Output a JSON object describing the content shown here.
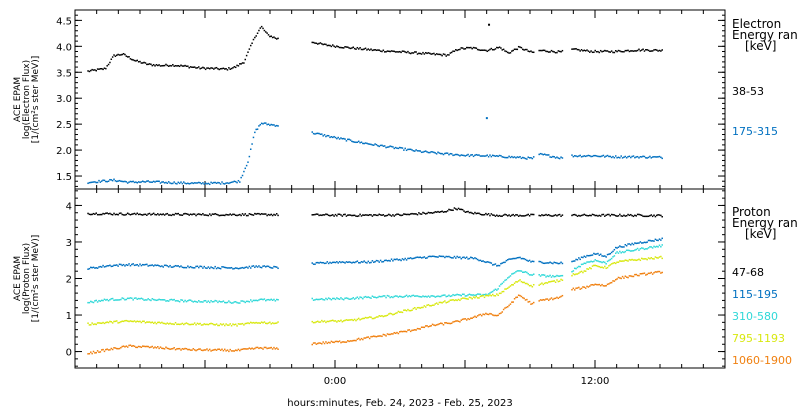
{
  "xlabel": "hours:minutes, Feb. 24, 2023 - Feb. 25, 2023",
  "x_tick_labels": [
    "0:00",
    "12:00"
  ],
  "chart_data": [
    {
      "type": "scatter",
      "panel": "electron",
      "ylabel_lines": [
        "ACE EPAM",
        "log(Electron Flux)",
        "[1/(cm²s ster MeV)]"
      ],
      "legend_title_lines": [
        "Electron",
        "Energy ran",
        "[keV]"
      ],
      "xlim": [
        -12,
        18
      ],
      "ylim": [
        1.25,
        4.7
      ],
      "y_tick_labels": [
        "1.5",
        "2.0",
        "2.5",
        "3.0",
        "3.5",
        "4.0",
        "4.5"
      ],
      "y_ticks": [
        1.5,
        2.0,
        2.5,
        3.0,
        3.5,
        4.0,
        4.5
      ],
      "gaps": [
        [
          -2.6,
          -1.1
        ],
        [
          9.2,
          9.4
        ],
        [
          10.5,
          10.9
        ]
      ],
      "series": [
        {
          "name": "38-53",
          "color": "#000000",
          "points": [
            [
              -11.4,
              3.52
            ],
            [
              -10.6,
              3.57
            ],
            [
              -10.2,
              3.82
            ],
            [
              -9.8,
              3.85
            ],
            [
              -9.2,
              3.72
            ],
            [
              -8.6,
              3.65
            ],
            [
              -8.0,
              3.63
            ],
            [
              -7.5,
              3.64
            ],
            [
              -7.0,
              3.62
            ],
            [
              -6.2,
              3.58
            ],
            [
              -5.5,
              3.57
            ],
            [
              -5.0,
              3.56
            ],
            [
              -4.6,
              3.6
            ],
            [
              -4.2,
              3.7
            ],
            [
              -3.7,
              4.18
            ],
            [
              -3.4,
              4.38
            ],
            [
              -3.1,
              4.22
            ],
            [
              -2.7,
              4.15
            ],
            [
              -1.0,
              4.08
            ],
            [
              -0.5,
              4.03
            ],
            [
              0.5,
              3.98
            ],
            [
              2.0,
              3.92
            ],
            [
              3.5,
              3.88
            ],
            [
              4.5,
              3.85
            ],
            [
              5.2,
              3.83
            ],
            [
              5.7,
              3.95
            ],
            [
              6.3,
              3.97
            ],
            [
              7.0,
              3.92
            ],
            [
              7.6,
              3.98
            ],
            [
              8.0,
              3.87
            ],
            [
              8.5,
              3.98
            ],
            [
              9.1,
              3.88
            ],
            [
              9.5,
              3.92
            ],
            [
              10.4,
              3.89
            ],
            [
              11.0,
              3.94
            ],
            [
              11.9,
              3.9
            ],
            [
              12.9,
              3.9
            ],
            [
              14.0,
              3.93
            ],
            [
              15.1,
              3.92
            ]
          ],
          "outliers": [
            [
              7.1,
              4.42
            ]
          ]
        },
        {
          "name": "175-315",
          "color": "#0070c0",
          "points": [
            [
              -11.4,
              1.38
            ],
            [
              -10.8,
              1.4
            ],
            [
              -10.2,
              1.42
            ],
            [
              -9.5,
              1.38
            ],
            [
              -8.8,
              1.39
            ],
            [
              -8.0,
              1.38
            ],
            [
              -7.3,
              1.37
            ],
            [
              -6.5,
              1.36
            ],
            [
              -5.8,
              1.36
            ],
            [
              -5.0,
              1.37
            ],
            [
              -4.4,
              1.4
            ],
            [
              -4.0,
              1.8
            ],
            [
              -3.7,
              2.35
            ],
            [
              -3.4,
              2.52
            ],
            [
              -3.0,
              2.49
            ],
            [
              -2.7,
              2.48
            ],
            [
              -1.0,
              2.33
            ],
            [
              0.0,
              2.24
            ],
            [
              1.0,
              2.16
            ],
            [
              2.0,
              2.09
            ],
            [
              3.0,
              2.03
            ],
            [
              4.0,
              1.97
            ],
            [
              5.0,
              1.93
            ],
            [
              6.0,
              1.9
            ],
            [
              7.0,
              1.89
            ],
            [
              8.0,
              1.87
            ],
            [
              9.1,
              1.84
            ],
            [
              9.5,
              1.92
            ],
            [
              10.4,
              1.85
            ],
            [
              10.9,
              1.89
            ],
            [
              12.0,
              1.89
            ],
            [
              13.0,
              1.87
            ],
            [
              14.0,
              1.87
            ],
            [
              15.1,
              1.86
            ]
          ],
          "outliers": [
            [
              7.0,
              2.62
            ]
          ]
        }
      ]
    },
    {
      "type": "scatter",
      "panel": "proton",
      "ylabel_lines": [
        "ACE EPAM",
        "log(Proton Flux)",
        "[1/(cm²s ster MeV)]"
      ],
      "legend_title_lines": [
        "Proton",
        "Energy ran",
        "[keV]"
      ],
      "xlim": [
        -12,
        18
      ],
      "ylim": [
        -0.45,
        4.45
      ],
      "y_tick_labels": [
        "0",
        "1",
        "2",
        "3",
        "4"
      ],
      "y_ticks": [
        0,
        1,
        2,
        3,
        4
      ],
      "gaps": [
        [
          -2.6,
          -1.1
        ],
        [
          9.2,
          9.4
        ],
        [
          10.5,
          10.9
        ]
      ],
      "series": [
        {
          "name": "47-68",
          "color": "#000000",
          "points": [
            [
              -11.4,
              3.78
            ],
            [
              -9.0,
              3.76
            ],
            [
              -6.0,
              3.75
            ],
            [
              -3.0,
              3.75
            ],
            [
              -1.0,
              3.74
            ],
            [
              1.0,
              3.73
            ],
            [
              3.0,
              3.74
            ],
            [
              4.5,
              3.8
            ],
            [
              5.0,
              3.83
            ],
            [
              5.6,
              3.92
            ],
            [
              6.2,
              3.8
            ],
            [
              7.5,
              3.73
            ],
            [
              9.0,
              3.73
            ],
            [
              10.0,
              3.73
            ],
            [
              12.0,
              3.73
            ],
            [
              14.0,
              3.73
            ],
            [
              15.1,
              3.72
            ]
          ],
          "outliers": [
            [
              7.1,
              4.45
            ]
          ]
        },
        {
          "name": "115-195",
          "color": "#0070c0",
          "points": [
            [
              -11.4,
              2.27
            ],
            [
              -10.5,
              2.35
            ],
            [
              -9.5,
              2.38
            ],
            [
              -8.5,
              2.36
            ],
            [
              -7.5,
              2.33
            ],
            [
              -6.5,
              2.32
            ],
            [
              -5.5,
              2.3
            ],
            [
              -4.5,
              2.29
            ],
            [
              -3.5,
              2.33
            ],
            [
              -2.7,
              2.3
            ],
            [
              -1.0,
              2.4
            ],
            [
              0.0,
              2.45
            ],
            [
              1.5,
              2.45
            ],
            [
              3.0,
              2.52
            ],
            [
              4.5,
              2.6
            ],
            [
              5.5,
              2.58
            ],
            [
              6.5,
              2.55
            ],
            [
              7.5,
              2.35
            ],
            [
              8.0,
              2.5
            ],
            [
              8.5,
              2.58
            ],
            [
              9.1,
              2.45
            ],
            [
              9.5,
              2.45
            ],
            [
              10.4,
              2.42
            ],
            [
              10.9,
              2.45
            ],
            [
              11.5,
              2.6
            ],
            [
              12.0,
              2.68
            ],
            [
              12.5,
              2.6
            ],
            [
              13.0,
              2.85
            ],
            [
              14.0,
              2.98
            ],
            [
              15.1,
              3.08
            ]
          ],
          "outliers": []
        },
        {
          "name": "310-580",
          "color": "#30d8d8",
          "points": [
            [
              -11.4,
              1.35
            ],
            [
              -10.5,
              1.42
            ],
            [
              -9.5,
              1.45
            ],
            [
              -8.5,
              1.42
            ],
            [
              -7.5,
              1.4
            ],
            [
              -6.5,
              1.38
            ],
            [
              -5.5,
              1.37
            ],
            [
              -4.5,
              1.35
            ],
            [
              -3.5,
              1.42
            ],
            [
              -2.7,
              1.4
            ],
            [
              -1.0,
              1.43
            ],
            [
              0.5,
              1.45
            ],
            [
              2.0,
              1.5
            ],
            [
              3.5,
              1.52
            ],
            [
              5.0,
              1.52
            ],
            [
              6.0,
              1.55
            ],
            [
              7.0,
              1.55
            ],
            [
              7.5,
              1.72
            ],
            [
              8.0,
              2.05
            ],
            [
              8.5,
              2.22
            ],
            [
              9.1,
              2.1
            ],
            [
              9.5,
              2.08
            ],
            [
              10.4,
              2.05
            ],
            [
              10.9,
              2.2
            ],
            [
              11.5,
              2.42
            ],
            [
              12.0,
              2.5
            ],
            [
              12.5,
              2.42
            ],
            [
              13.0,
              2.7
            ],
            [
              14.0,
              2.8
            ],
            [
              15.1,
              2.9
            ]
          ],
          "outliers": []
        },
        {
          "name": "795-1193",
          "color": "#d8e810",
          "points": [
            [
              -11.4,
              0.75
            ],
            [
              -10.5,
              0.8
            ],
            [
              -9.5,
              0.83
            ],
            [
              -8.5,
              0.8
            ],
            [
              -7.5,
              0.77
            ],
            [
              -6.5,
              0.76
            ],
            [
              -5.5,
              0.74
            ],
            [
              -4.5,
              0.73
            ],
            [
              -3.5,
              0.8
            ],
            [
              -2.7,
              0.78
            ],
            [
              -1.0,
              0.82
            ],
            [
              0.5,
              0.84
            ],
            [
              2.0,
              0.95
            ],
            [
              3.5,
              1.15
            ],
            [
              5.0,
              1.35
            ],
            [
              6.0,
              1.45
            ],
            [
              7.0,
              1.52
            ],
            [
              7.5,
              1.55
            ],
            [
              8.0,
              1.75
            ],
            [
              8.5,
              1.95
            ],
            [
              9.1,
              1.8
            ],
            [
              9.5,
              1.85
            ],
            [
              10.4,
              1.95
            ],
            [
              10.9,
              2.1
            ],
            [
              11.5,
              2.2
            ],
            [
              12.0,
              2.35
            ],
            [
              12.5,
              2.3
            ],
            [
              13.0,
              2.45
            ],
            [
              14.0,
              2.52
            ],
            [
              15.1,
              2.58
            ]
          ],
          "outliers": []
        },
        {
          "name": "1060-1900",
          "color": "#f08010",
          "points": [
            [
              -11.4,
              -0.05
            ],
            [
              -10.5,
              0.05
            ],
            [
              -9.5,
              0.15
            ],
            [
              -8.5,
              0.12
            ],
            [
              -7.5,
              0.08
            ],
            [
              -6.5,
              0.05
            ],
            [
              -5.5,
              0.04
            ],
            [
              -4.5,
              0.03
            ],
            [
              -3.5,
              0.1
            ],
            [
              -2.7,
              0.08
            ],
            [
              -1.0,
              0.22
            ],
            [
              0.5,
              0.28
            ],
            [
              2.0,
              0.42
            ],
            [
              3.5,
              0.58
            ],
            [
              4.5,
              0.72
            ],
            [
              5.5,
              0.8
            ],
            [
              6.5,
              0.95
            ],
            [
              7.0,
              1.05
            ],
            [
              7.5,
              0.98
            ],
            [
              8.0,
              1.25
            ],
            [
              8.5,
              1.55
            ],
            [
              9.1,
              1.3
            ],
            [
              9.5,
              1.4
            ],
            [
              10.4,
              1.48
            ],
            [
              10.9,
              1.7
            ],
            [
              11.5,
              1.75
            ],
            [
              12.0,
              1.85
            ],
            [
              12.5,
              1.8
            ],
            [
              13.0,
              2.0
            ],
            [
              14.0,
              2.1
            ],
            [
              15.1,
              2.18
            ]
          ],
          "outliers": []
        }
      ]
    }
  ]
}
